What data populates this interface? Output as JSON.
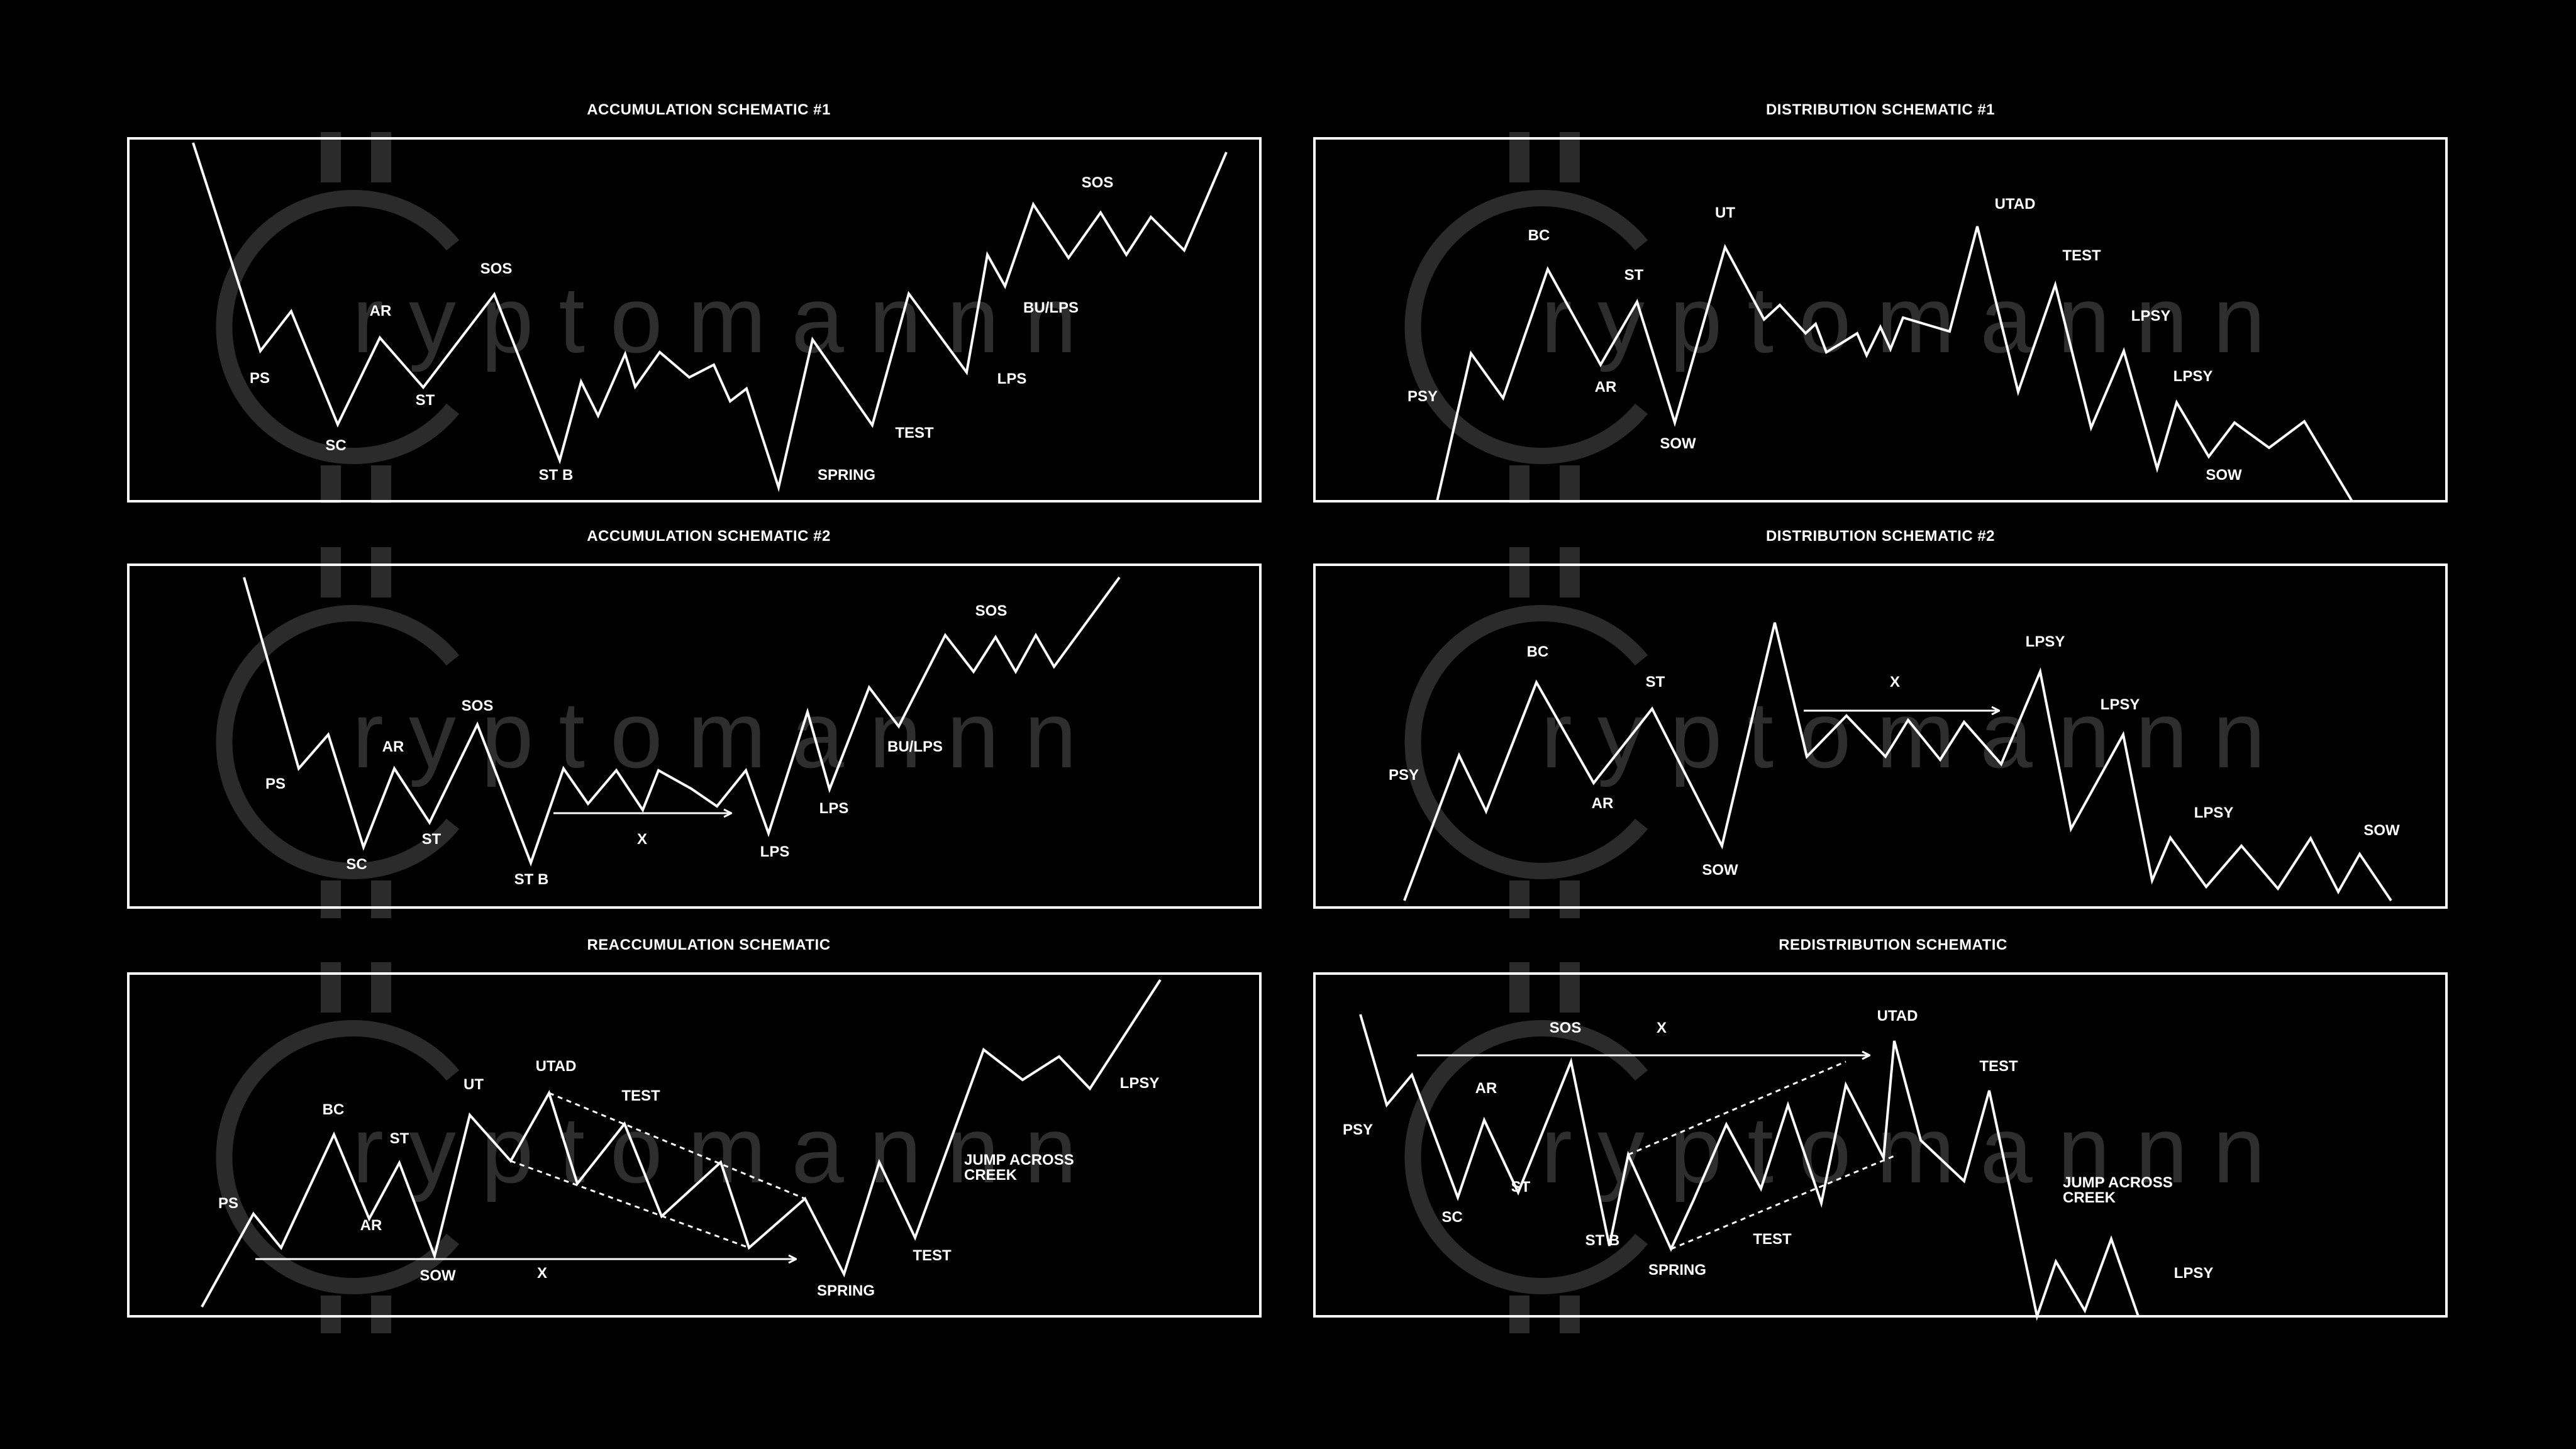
{
  "colors": {
    "background": "#000000",
    "line": "#ffffff",
    "watermark": "#2e2e2e"
  },
  "watermark": {
    "text": "ryptomannn",
    "logo_icon": "bitcoin-c-logo-icon"
  },
  "panels": [
    {
      "id": "accumulation-1",
      "title": "ACCUMULATION SCHEMATIC #1",
      "labels": [
        {
          "text": "PS"
        },
        {
          "text": "SC"
        },
        {
          "text": "AR"
        },
        {
          "text": "ST"
        },
        {
          "text": "SOS"
        },
        {
          "text": "ST B"
        },
        {
          "text": "SPRING"
        },
        {
          "text": "TEST"
        },
        {
          "text": "LPS"
        },
        {
          "text": "BU/LPS"
        },
        {
          "text": "SOS"
        }
      ]
    },
    {
      "id": "distribution-1",
      "title": "DISTRIBUTION SCHEMATIC #1",
      "labels": [
        {
          "text": "PSY"
        },
        {
          "text": "BC"
        },
        {
          "text": "AR"
        },
        {
          "text": "ST"
        },
        {
          "text": "SOW"
        },
        {
          "text": "UT"
        },
        {
          "text": "UTAD"
        },
        {
          "text": "TEST"
        },
        {
          "text": "LPSY"
        },
        {
          "text": "LPSY"
        },
        {
          "text": "SOW"
        }
      ]
    },
    {
      "id": "accumulation-2",
      "title": "ACCUMULATION SCHEMATIC #2",
      "labels": [
        {
          "text": "PS"
        },
        {
          "text": "SC"
        },
        {
          "text": "AR"
        },
        {
          "text": "ST"
        },
        {
          "text": "SOS"
        },
        {
          "text": "ST B"
        },
        {
          "text": "X"
        },
        {
          "text": "LPS"
        },
        {
          "text": "LPS"
        },
        {
          "text": "BU/LPS"
        },
        {
          "text": "SOS"
        }
      ]
    },
    {
      "id": "distribution-2",
      "title": "DISTRIBUTION SCHEMATIC #2",
      "labels": [
        {
          "text": "PSY"
        },
        {
          "text": "BC"
        },
        {
          "text": "AR"
        },
        {
          "text": "ST"
        },
        {
          "text": "SOW"
        },
        {
          "text": "X"
        },
        {
          "text": "LPSY"
        },
        {
          "text": "LPSY"
        },
        {
          "text": "LPSY"
        },
        {
          "text": "SOW"
        }
      ]
    },
    {
      "id": "reaccumulation",
      "title": "REACCUMULATION SCHEMATIC",
      "labels": [
        {
          "text": "PS"
        },
        {
          "text": "BC"
        },
        {
          "text": "AR"
        },
        {
          "text": "ST"
        },
        {
          "text": "SOW"
        },
        {
          "text": "UT"
        },
        {
          "text": "UTAD"
        },
        {
          "text": "TEST"
        },
        {
          "text": "X"
        },
        {
          "text": "SPRING"
        },
        {
          "text": "TEST"
        },
        {
          "text": "JUMP ACROSS"
        },
        {
          "text": "CREEK"
        },
        {
          "text": "LPSY"
        }
      ]
    },
    {
      "id": "redistribution",
      "title": "REDISTRIBUTION SCHEMATIC",
      "labels": [
        {
          "text": "PSY"
        },
        {
          "text": "AR"
        },
        {
          "text": "SC"
        },
        {
          "text": "ST"
        },
        {
          "text": "SOS"
        },
        {
          "text": "X"
        },
        {
          "text": "ST B"
        },
        {
          "text": "SPRING"
        },
        {
          "text": "TEST"
        },
        {
          "text": "UTAD"
        },
        {
          "text": "TEST"
        },
        {
          "text": "JUMP ACROSS"
        },
        {
          "text": "CREEK"
        },
        {
          "text": "LPSY"
        }
      ]
    }
  ]
}
